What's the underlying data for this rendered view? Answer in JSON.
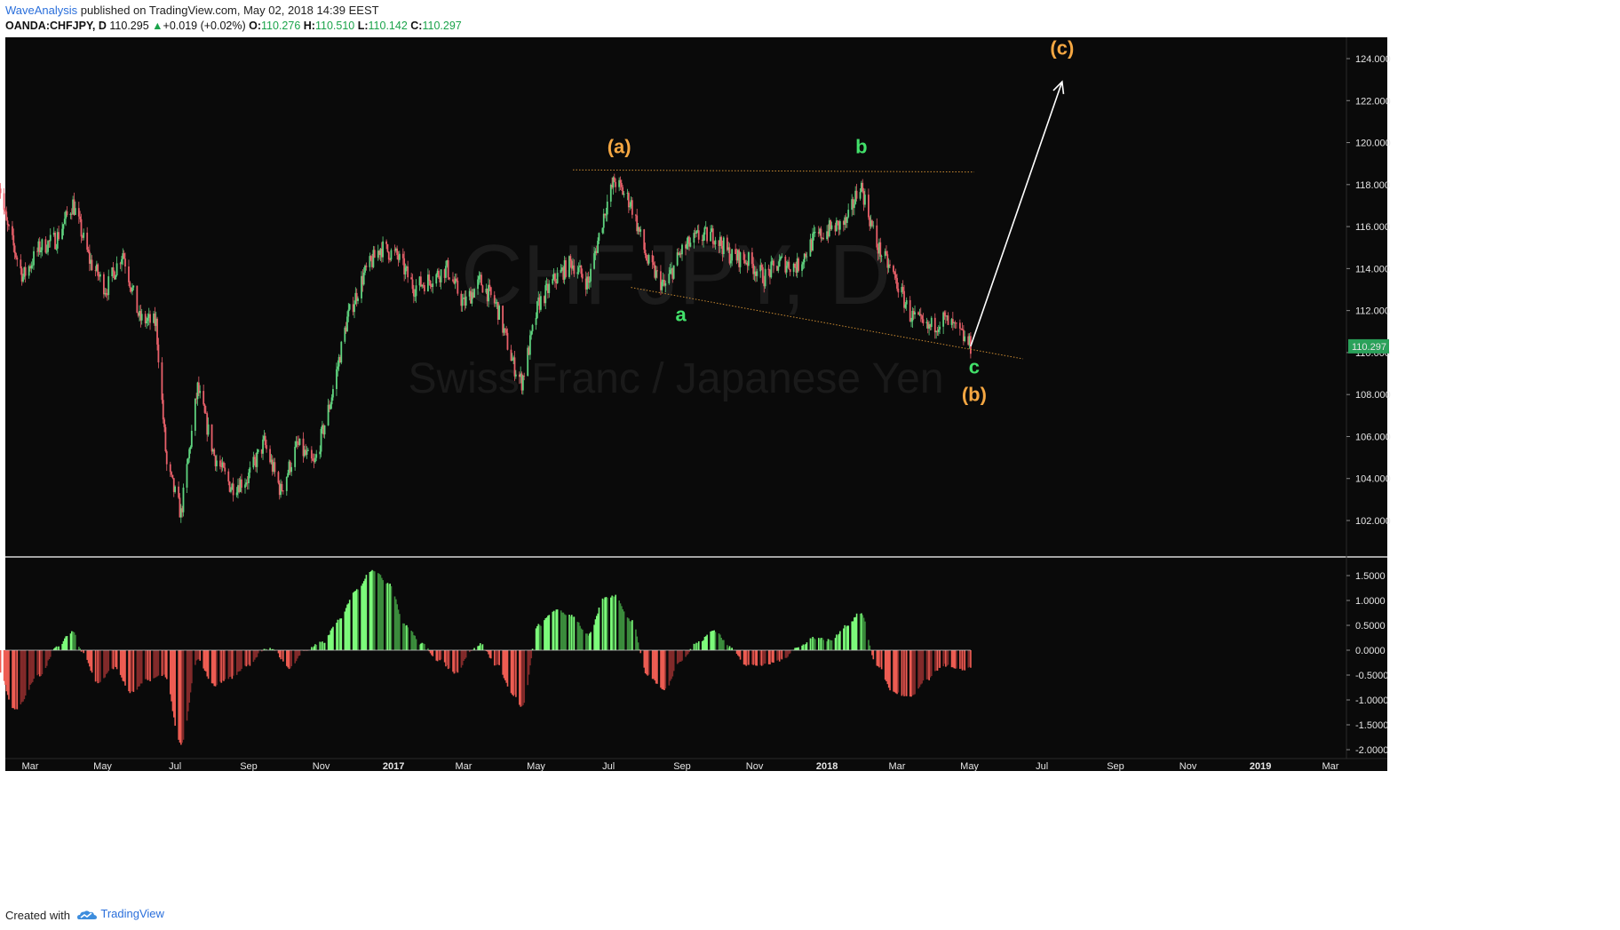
{
  "header": {
    "brand": "WaveAnalysis",
    "published": "published on TradingView.com, May 02, 2018 14:39 EEST",
    "symbol": "OANDA:CHFJPY, D",
    "last": "110.295",
    "change_arrow": "▲",
    "change": "+0.019 (+0.02%)",
    "o_label": "O:",
    "o_value": "110.276",
    "h_label": "H:",
    "h_value": "110.510",
    "l_label": "L:",
    "l_value": "110.142",
    "c_label": "C:",
    "c_value": "110.297"
  },
  "footer": {
    "created_with": "Created with",
    "brand": "TradingView"
  },
  "colors": {
    "background": "#0a0a0a",
    "up": "#5fd37f",
    "down": "#e8606a",
    "hist_light_green": "#7dfc7b",
    "hist_dark_green": "#3b8c3c",
    "hist_light_red": "#ee5d53",
    "hist_dark_red": "#822a2a",
    "orange_label": "#f5a742",
    "green_label": "#42e06a",
    "price_tag": "#2aa15a"
  },
  "chart_data": [
    {
      "type": "candlestick",
      "title": "CHFJPY, D",
      "subtitle": "Swiss Franc / Japanese Yen",
      "y_tick_labels": [
        "102.000",
        "104.000",
        "106.000",
        "108.000",
        "110.000",
        "112.000",
        "114.000",
        "116.000",
        "118.000",
        "120.000",
        "122.000",
        "124.000"
      ],
      "ylim": [
        100.0,
        124.5
      ],
      "x_tick_labels": [
        "Mar",
        "May",
        "Jul",
        "Sep",
        "Nov",
        "2017",
        "Mar",
        "May",
        "Jul",
        "Sep",
        "Nov",
        "2018",
        "Mar",
        "May",
        "Jul",
        "Sep",
        "Nov",
        "2019",
        "Mar"
      ],
      "x_tick_dates": [
        "2016-03-01",
        "2016-05-01",
        "2016-07-01",
        "2016-09-01",
        "2016-11-01",
        "2017-01-01",
        "2017-03-01",
        "2017-05-01",
        "2017-07-01",
        "2017-09-01",
        "2017-11-01",
        "2018-01-01",
        "2018-03-01",
        "2018-05-01",
        "2018-07-01",
        "2018-09-01",
        "2018-11-01",
        "2019-01-01",
        "2019-03-01"
      ],
      "current_price": "110.297",
      "close_path": [
        {
          "date": "2016-02-03",
          "close": 118.4
        },
        {
          "date": "2016-02-10",
          "close": 116.1
        },
        {
          "date": "2016-02-24",
          "close": 113.6
        },
        {
          "date": "2016-03-09",
          "close": 115.0
        },
        {
          "date": "2016-03-23",
          "close": 115.4
        },
        {
          "date": "2016-04-06",
          "close": 117.1
        },
        {
          "date": "2016-04-20",
          "close": 114.4
        },
        {
          "date": "2016-05-04",
          "close": 113.0
        },
        {
          "date": "2016-05-18",
          "close": 114.8
        },
        {
          "date": "2016-06-01",
          "close": 111.6
        },
        {
          "date": "2016-06-15",
          "close": 111.4
        },
        {
          "date": "2016-06-24",
          "close": 104.6
        },
        {
          "date": "2016-07-06",
          "close": 102.3
        },
        {
          "date": "2016-07-20",
          "close": 108.3
        },
        {
          "date": "2016-08-03",
          "close": 105.1
        },
        {
          "date": "2016-08-17",
          "close": 103.6
        },
        {
          "date": "2016-08-31",
          "close": 104.0
        },
        {
          "date": "2016-09-14",
          "close": 105.7
        },
        {
          "date": "2016-09-28",
          "close": 103.4
        },
        {
          "date": "2016-10-12",
          "close": 105.6
        },
        {
          "date": "2016-10-26",
          "close": 104.6
        },
        {
          "date": "2016-11-09",
          "close": 107.7
        },
        {
          "date": "2016-11-23",
          "close": 111.6
        },
        {
          "date": "2016-12-07",
          "close": 113.7
        },
        {
          "date": "2016-12-21",
          "close": 115.0
        },
        {
          "date": "2017-01-04",
          "close": 114.6
        },
        {
          "date": "2017-01-18",
          "close": 113.1
        },
        {
          "date": "2017-02-01",
          "close": 113.5
        },
        {
          "date": "2017-02-15",
          "close": 114.0
        },
        {
          "date": "2017-03-01",
          "close": 112.3
        },
        {
          "date": "2017-03-15",
          "close": 113.4
        },
        {
          "date": "2017-03-29",
          "close": 112.2
        },
        {
          "date": "2017-04-12",
          "close": 109.4
        },
        {
          "date": "2017-04-19",
          "close": 108.6
        },
        {
          "date": "2017-05-03",
          "close": 112.3
        },
        {
          "date": "2017-05-17",
          "close": 113.5
        },
        {
          "date": "2017-05-31",
          "close": 114.3
        },
        {
          "date": "2017-06-14",
          "close": 113.3
        },
        {
          "date": "2017-06-28",
          "close": 116.8
        },
        {
          "date": "2017-07-06",
          "close": 118.2
        },
        {
          "date": "2017-07-20",
          "close": 117.1
        },
        {
          "date": "2017-08-03",
          "close": 114.3
        },
        {
          "date": "2017-08-17",
          "close": 113.1
        },
        {
          "date": "2017-08-31",
          "close": 114.8
        },
        {
          "date": "2017-09-14",
          "close": 115.5
        },
        {
          "date": "2017-09-28",
          "close": 115.6
        },
        {
          "date": "2017-10-12",
          "close": 114.6
        },
        {
          "date": "2017-10-26",
          "close": 114.4
        },
        {
          "date": "2017-11-09",
          "close": 113.6
        },
        {
          "date": "2017-11-23",
          "close": 114.3
        },
        {
          "date": "2017-12-07",
          "close": 114.1
        },
        {
          "date": "2017-12-21",
          "close": 115.4
        },
        {
          "date": "2018-01-04",
          "close": 115.9
        },
        {
          "date": "2018-01-18",
          "close": 116.2
        },
        {
          "date": "2018-01-29",
          "close": 118.1
        },
        {
          "date": "2018-02-12",
          "close": 115.1
        },
        {
          "date": "2018-02-26",
          "close": 113.7
        },
        {
          "date": "2018-03-12",
          "close": 111.8
        },
        {
          "date": "2018-03-26",
          "close": 111.1
        },
        {
          "date": "2018-04-09",
          "close": 111.6
        },
        {
          "date": "2018-04-23",
          "close": 110.9
        },
        {
          "date": "2018-05-02",
          "close": 110.3
        }
      ],
      "annotations": [
        {
          "text": "(a)",
          "date": "2017-07-10",
          "price": 119.5,
          "color": "orange"
        },
        {
          "text": "b",
          "date": "2018-01-30",
          "price": 119.5,
          "color": "green"
        },
        {
          "text": "a",
          "date": "2017-08-31",
          "price": 111.5,
          "color": "green"
        },
        {
          "text": "c",
          "date": "2018-05-05",
          "price": 109.0,
          "color": "green"
        },
        {
          "text": "(b)",
          "date": "2018-05-05",
          "price": 107.7,
          "color": "orange"
        },
        {
          "text": "(c)",
          "date": "2018-07-18",
          "price": 124.2,
          "color": "orange"
        }
      ],
      "trendlines": [
        {
          "style": "dotted",
          "color": "orange",
          "from": {
            "date": "2017-06-01",
            "price": 118.7
          },
          "to": {
            "date": "2018-05-05",
            "price": 118.6
          }
        },
        {
          "style": "dotted",
          "color": "orange",
          "from": {
            "date": "2017-07-20",
            "price": 113.1
          },
          "to": {
            "date": "2018-06-15",
            "price": 109.7
          }
        },
        {
          "style": "arrow",
          "color": "white",
          "from": {
            "date": "2018-05-02",
            "price": 110.3
          },
          "to": {
            "date": "2018-07-18",
            "price": 122.9
          }
        }
      ]
    },
    {
      "type": "histogram",
      "y_tick_labels": [
        "1.5000",
        "1.0000",
        "0.5000",
        "0.0000",
        "-0.5000",
        "-1.0000",
        "-1.5000",
        "-2.0000"
      ],
      "ylim": [
        -2.05,
        1.7
      ],
      "shape": [
        {
          "date": "2016-02-03",
          "value": -0.4
        },
        {
          "date": "2016-02-17",
          "value": -1.2
        },
        {
          "date": "2016-03-09",
          "value": -0.5
        },
        {
          "date": "2016-03-23",
          "value": 0.05
        },
        {
          "date": "2016-04-06",
          "value": 0.38
        },
        {
          "date": "2016-04-13",
          "value": 0.0
        },
        {
          "date": "2016-04-27",
          "value": -0.65
        },
        {
          "date": "2016-05-11",
          "value": -0.35
        },
        {
          "date": "2016-05-25",
          "value": -0.85
        },
        {
          "date": "2016-06-08",
          "value": -0.6
        },
        {
          "date": "2016-06-22",
          "value": -0.5
        },
        {
          "date": "2016-07-06",
          "value": -1.9
        },
        {
          "date": "2016-07-20",
          "value": -0.2
        },
        {
          "date": "2016-08-03",
          "value": -0.7
        },
        {
          "date": "2016-08-17",
          "value": -0.55
        },
        {
          "date": "2016-08-31",
          "value": -0.3
        },
        {
          "date": "2016-09-14",
          "value": 0.0
        },
        {
          "date": "2016-09-21",
          "value": 0.03
        },
        {
          "date": "2016-10-05",
          "value": -0.35
        },
        {
          "date": "2016-10-19",
          "value": 0.0
        },
        {
          "date": "2016-11-02",
          "value": 0.15
        },
        {
          "date": "2016-11-16",
          "value": 0.6
        },
        {
          "date": "2016-11-30",
          "value": 1.2
        },
        {
          "date": "2016-12-14",
          "value": 1.62
        },
        {
          "date": "2016-12-28",
          "value": 1.35
        },
        {
          "date": "2017-01-11",
          "value": 0.5
        },
        {
          "date": "2017-01-25",
          "value": 0.12
        },
        {
          "date": "2017-02-08",
          "value": -0.2
        },
        {
          "date": "2017-02-22",
          "value": -0.45
        },
        {
          "date": "2017-03-08",
          "value": 0.0
        },
        {
          "date": "2017-03-15",
          "value": 0.12
        },
        {
          "date": "2017-03-29",
          "value": -0.3
        },
        {
          "date": "2017-04-12",
          "value": -0.9
        },
        {
          "date": "2017-04-19",
          "value": -1.15
        },
        {
          "date": "2017-05-03",
          "value": 0.5
        },
        {
          "date": "2017-05-17",
          "value": 0.8
        },
        {
          "date": "2017-05-31",
          "value": 0.7
        },
        {
          "date": "2017-06-14",
          "value": 0.3
        },
        {
          "date": "2017-06-28",
          "value": 1.05
        },
        {
          "date": "2017-07-06",
          "value": 1.1
        },
        {
          "date": "2017-07-20",
          "value": 0.6
        },
        {
          "date": "2017-08-03",
          "value": -0.5
        },
        {
          "date": "2017-08-17",
          "value": -0.8
        },
        {
          "date": "2017-08-31",
          "value": -0.2
        },
        {
          "date": "2017-09-14",
          "value": 0.15
        },
        {
          "date": "2017-09-28",
          "value": 0.4
        },
        {
          "date": "2017-10-12",
          "value": 0.05
        },
        {
          "date": "2017-10-26",
          "value": -0.3
        },
        {
          "date": "2017-11-09",
          "value": -0.3
        },
        {
          "date": "2017-11-23",
          "value": -0.2
        },
        {
          "date": "2017-12-07",
          "value": 0.05
        },
        {
          "date": "2017-12-21",
          "value": 0.25
        },
        {
          "date": "2018-01-04",
          "value": 0.2
        },
        {
          "date": "2018-01-18",
          "value": 0.5
        },
        {
          "date": "2018-01-29",
          "value": 0.75
        },
        {
          "date": "2018-02-12",
          "value": -0.3
        },
        {
          "date": "2018-02-26",
          "value": -0.85
        },
        {
          "date": "2018-03-12",
          "value": -0.95
        },
        {
          "date": "2018-03-26",
          "value": -0.6
        },
        {
          "date": "2018-04-09",
          "value": -0.3
        },
        {
          "date": "2018-04-23",
          "value": -0.4
        },
        {
          "date": "2018-05-02",
          "value": -0.35
        }
      ]
    }
  ]
}
